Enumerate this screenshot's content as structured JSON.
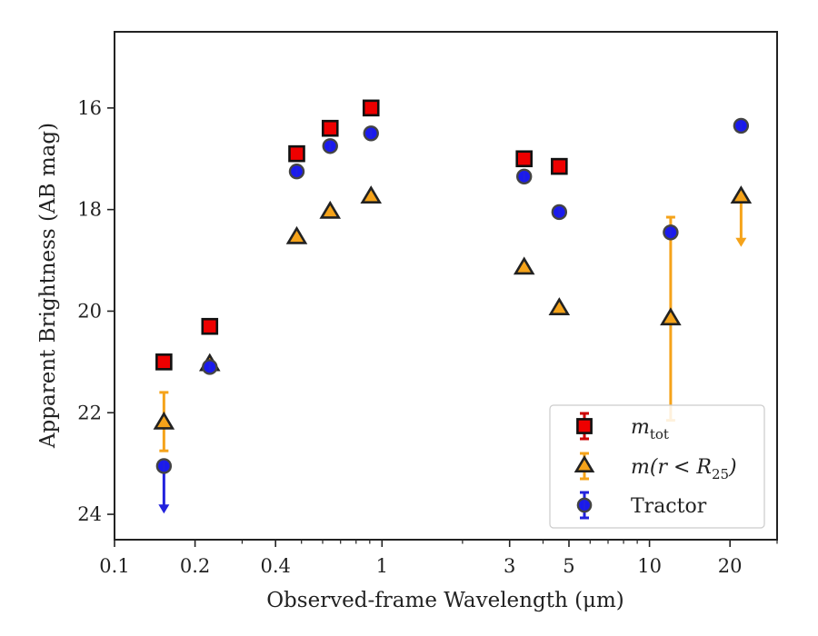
{
  "chart_data": {
    "type": "scatter",
    "xlabel": "Observed-frame Wavelength (μm)",
    "ylabel": "Apparent Brightness (AB mag)",
    "xscale": "log",
    "xlim": [
      0.1,
      30
    ],
    "ylim": [
      24.5,
      14.5
    ],
    "y_inverted": true,
    "grid": false,
    "legend_position": "bottom-right",
    "x_ticks": [
      {
        "value": 0.1,
        "label": "0.1"
      },
      {
        "value": 0.2,
        "label": "0.2"
      },
      {
        "value": 0.4,
        "label": "0.4"
      },
      {
        "value": 1,
        "label": "1"
      },
      {
        "value": 3,
        "label": "3"
      },
      {
        "value": 5,
        "label": "5"
      },
      {
        "value": 10,
        "label": "10"
      },
      {
        "value": 20,
        "label": "20"
      }
    ],
    "y_ticks": [
      {
        "value": 16,
        "label": "16"
      },
      {
        "value": 18,
        "label": "18"
      },
      {
        "value": 20,
        "label": "20"
      },
      {
        "value": 22,
        "label": "22"
      },
      {
        "value": 24,
        "label": "24"
      }
    ],
    "series": [
      {
        "name_main": "m",
        "name_sub": "tot",
        "marker": "square",
        "color": "#ee0000",
        "edge": "#111111",
        "errcolor": "#cc0000",
        "points": [
          {
            "x": 0.153,
            "y": 21.0
          },
          {
            "x": 0.227,
            "y": 20.3
          },
          {
            "x": 0.48,
            "y": 16.9
          },
          {
            "x": 0.64,
            "y": 16.4
          },
          {
            "x": 0.91,
            "y": 16.0
          },
          {
            "x": 3.4,
            "y": 17.0
          },
          {
            "x": 4.6,
            "y": 17.15
          }
        ]
      },
      {
        "name_main": "m(r < R",
        "name_sub": "25",
        "name_end": ")",
        "marker": "triangle",
        "color": "#f5a31a",
        "edge": "#222222",
        "errcolor": "#f5a31a",
        "points": [
          {
            "x": 0.153,
            "y": 22.2,
            "err_low": 0.55,
            "err_high": 0.6
          },
          {
            "x": 0.227,
            "y": 21.05
          },
          {
            "x": 0.48,
            "y": 18.55
          },
          {
            "x": 0.64,
            "y": 18.05
          },
          {
            "x": 0.91,
            "y": 17.75
          },
          {
            "x": 3.4,
            "y": 19.15
          },
          {
            "x": 4.6,
            "y": 19.95
          },
          {
            "x": 12.0,
            "y": 20.15,
            "err_low": 2.0,
            "err_high": 2.0
          },
          {
            "x": 22.0,
            "y": 17.75,
            "upper_limit_to": 18.7
          }
        ]
      },
      {
        "name_main": "Tractor",
        "marker": "circle",
        "color": "#1a1aee",
        "edge": "#444444",
        "errcolor": "#2222dd",
        "points": [
          {
            "x": 0.153,
            "y": 23.05,
            "upper_limit_to": 23.95
          },
          {
            "x": 0.227,
            "y": 21.1
          },
          {
            "x": 0.48,
            "y": 17.25
          },
          {
            "x": 0.64,
            "y": 16.75
          },
          {
            "x": 0.91,
            "y": 16.5
          },
          {
            "x": 3.4,
            "y": 17.35
          },
          {
            "x": 4.6,
            "y": 18.05
          },
          {
            "x": 12.0,
            "y": 18.45
          },
          {
            "x": 22.0,
            "y": 16.35
          }
        ]
      }
    ]
  }
}
